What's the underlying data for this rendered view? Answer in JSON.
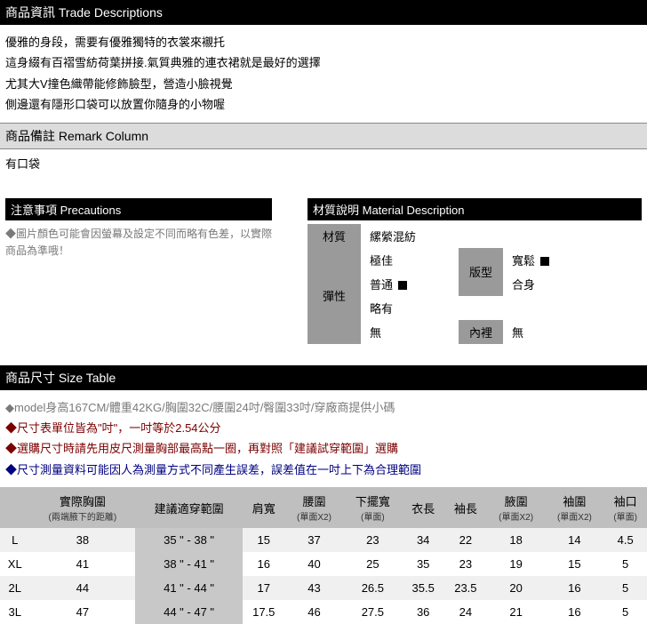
{
  "tradeDesc": {
    "header": "商品資訊 Trade Descriptions",
    "lines": [
      "優雅的身段，需要有優雅獨特的衣裳來襯托",
      "這身綴有百褶雪紡荷葉拼接.氣質典雅的連衣裙就是最好的選擇",
      "尤其大V撞色織帶能修飾臉型，營造小臉視覺",
      "側邊還有隱形口袋可以放置你隨身的小物喔"
    ]
  },
  "remark": {
    "header": "商品備註 Remark Column",
    "body": "有口袋"
  },
  "precautions": {
    "header": "注意事項 Precautions",
    "text": "◆圖片顏色可能會因螢幕及設定不同而略有色差，以實際商品為準哦！"
  },
  "material": {
    "header": "材質說明 Material Description",
    "labelMaterial": "材質",
    "valueMaterial": "縲縈混紡",
    "labelElastic": "彈性",
    "elasticOptions": {
      "best": "極佳",
      "normal": "普通",
      "slight": "略有",
      "none": "無"
    },
    "labelFit": "版型",
    "fitOptions": {
      "loose": "寬鬆",
      "fit": "合身"
    },
    "labelLining": "內裡",
    "liningValue": "無",
    "checked": {
      "elastic": "normal",
      "fit": "loose"
    }
  },
  "sizeTable": {
    "header": "商品尺寸 Size Table",
    "notes": [
      {
        "cls": "note-gray",
        "text": "◆model身高167CM/體重42KG/胸圍32C/腰圍24吋/臀圍33吋/穿廠商提供小碼"
      },
      {
        "cls": "note-brown",
        "text": "◆尺寸表單位皆為\"吋\"，一吋等於2.54公分"
      },
      {
        "cls": "note-brown2",
        "text": "◆選購尺寸時請先用皮尺測量胸部最高點一圈，再對照「建議試穿範圍」選購"
      },
      {
        "cls": "note-blue",
        "text": "◆尺寸測量資料可能因人為測量方式不同產生誤差，誤差值在一吋上下為合理範圍"
      }
    ],
    "columns": [
      {
        "label": "",
        "sub": ""
      },
      {
        "label": "實際胸圍",
        "sub": "(兩端腋下的距離)"
      },
      {
        "label": "建議適穿範圍",
        "sub": ""
      },
      {
        "label": "肩寬",
        "sub": ""
      },
      {
        "label": "腰圍",
        "sub": "(單面X2)"
      },
      {
        "label": "下擺寬",
        "sub": "(單面)"
      },
      {
        "label": "衣長",
        "sub": ""
      },
      {
        "label": "袖長",
        "sub": ""
      },
      {
        "label": "腋圍",
        "sub": "(單面X2)"
      },
      {
        "label": "袖圍",
        "sub": "(單面X2)"
      },
      {
        "label": "袖口",
        "sub": "(單面)"
      }
    ],
    "rows": [
      {
        "size": "L",
        "bust": "38",
        "range": "35 \" - 38 \"",
        "shoulder": "15",
        "waist": "37",
        "hem": "23",
        "length": "34",
        "sleeve": "22",
        "armhole": "18",
        "sleeveCirc": "14",
        "cuff": "4.5"
      },
      {
        "size": "XL",
        "bust": "41",
        "range": "38 \" - 41 \"",
        "shoulder": "16",
        "waist": "40",
        "hem": "25",
        "length": "35",
        "sleeve": "23",
        "armhole": "19",
        "sleeveCirc": "15",
        "cuff": "5"
      },
      {
        "size": "2L",
        "bust": "44",
        "range": "41 \" - 44 \"",
        "shoulder": "17",
        "waist": "43",
        "hem": "26.5",
        "length": "35.5",
        "sleeve": "23.5",
        "armhole": "20",
        "sleeveCirc": "16",
        "cuff": "5"
      },
      {
        "size": "3L",
        "bust": "47",
        "range": "44 \" - 47 \"",
        "shoulder": "17.5",
        "waist": "46",
        "hem": "27.5",
        "length": "36",
        "sleeve": "24",
        "armhole": "21",
        "sleeveCirc": "16",
        "cuff": "5"
      }
    ]
  }
}
